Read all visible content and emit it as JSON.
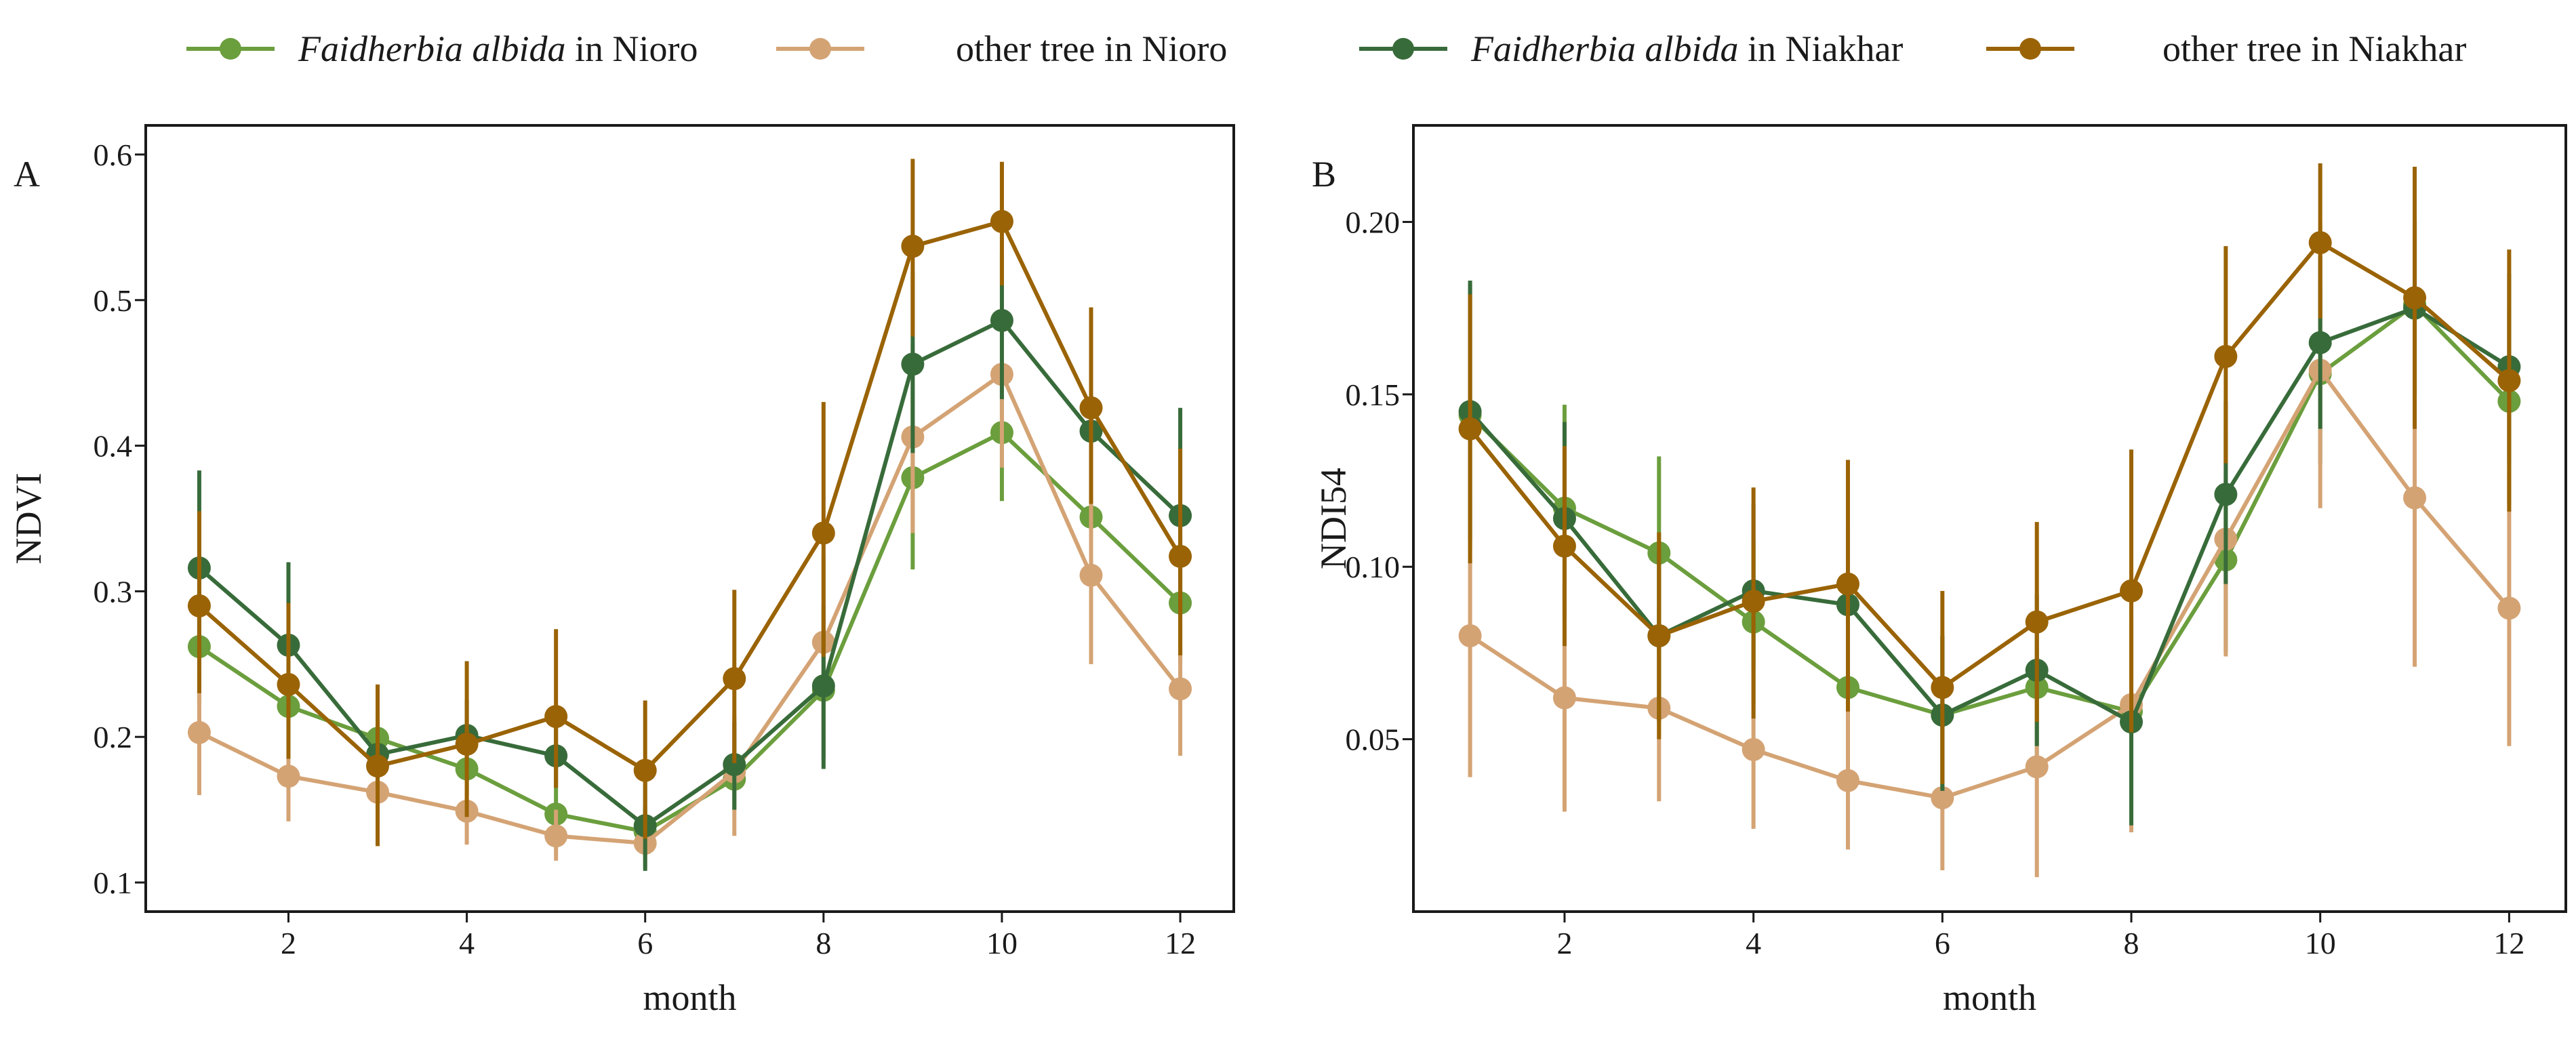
{
  "legend": [
    {
      "key": "fa_nioro",
      "prefix": "Faidherbia albida",
      "suffix": " in Nioro",
      "color": "#6b9e3d"
    },
    {
      "key": "ot_nioro",
      "prefix": "",
      "suffix": "other tree in Nioro",
      "color": "#d4a374"
    },
    {
      "key": "fa_niakhar",
      "prefix": "Faidherbia albida",
      "suffix": " in Niakhar",
      "color": "#386b3a"
    },
    {
      "key": "ot_niakhar",
      "prefix": "",
      "suffix": "other tree in Niakhar",
      "color": "#9a6305"
    }
  ],
  "chart_data": [
    {
      "type": "line",
      "panel_label": "A",
      "xlabel": "month",
      "ylabel": "NDVI",
      "xlim": [
        0.4,
        12.6
      ],
      "ylim": [
        0.08,
        0.62
      ],
      "x": [
        1,
        2,
        3,
        4,
        5,
        6,
        7,
        8,
        9,
        10,
        11,
        12
      ],
      "xticks": [
        2,
        4,
        6,
        8,
        10,
        12
      ],
      "yticks": [
        0.1,
        0.2,
        0.3,
        0.4,
        0.5,
        0.6
      ],
      "ytick_labels": [
        "0.1",
        "0.2",
        "0.3",
        "0.4",
        "0.5",
        "0.6"
      ],
      "series": [
        {
          "key": "fa_nioro",
          "name": "Faidherbia albida in Nioro",
          "color": "#6b9e3d",
          "values": [
            0.262,
            0.221,
            0.199,
            0.178,
            0.147,
            0.135,
            0.171,
            0.232,
            0.378,
            0.409,
            0.351,
            0.292
          ],
          "err_low": [
            0.222,
            0.198,
            0.182,
            0.16,
            0.13,
            0.118,
            0.15,
            0.185,
            0.315,
            0.362,
            0.305,
            0.25
          ],
          "err_high": [
            0.3,
            0.25,
            0.215,
            0.195,
            0.165,
            0.152,
            0.19,
            0.265,
            0.44,
            0.455,
            0.395,
            0.335
          ]
        },
        {
          "key": "ot_nioro",
          "name": "other tree in Nioro",
          "color": "#d4a374",
          "values": [
            0.203,
            0.173,
            0.162,
            0.149,
            0.132,
            0.127,
            0.176,
            0.265,
            0.406,
            0.449,
            0.311,
            0.233
          ],
          "err_low": [
            0.16,
            0.142,
            0.14,
            0.126,
            0.115,
            0.11,
            0.132,
            0.205,
            0.34,
            0.385,
            0.25,
            0.187
          ],
          "err_high": [
            0.245,
            0.205,
            0.185,
            0.17,
            0.15,
            0.145,
            0.215,
            0.325,
            0.47,
            0.51,
            0.37,
            0.28
          ]
        },
        {
          "key": "fa_niakhar",
          "name": "Faidherbia albida in Niakhar",
          "color": "#386b3a",
          "values": [
            0.316,
            0.263,
            0.188,
            0.201,
            0.187,
            0.139,
            0.181,
            0.235,
            0.456,
            0.486,
            0.41,
            0.352
          ],
          "err_low": [
            0.255,
            0.205,
            0.165,
            0.18,
            0.165,
            0.108,
            0.15,
            0.178,
            0.395,
            0.432,
            0.36,
            0.282
          ],
          "err_high": [
            0.383,
            0.32,
            0.21,
            0.225,
            0.21,
            0.172,
            0.21,
            0.29,
            0.52,
            0.532,
            0.46,
            0.426
          ]
        },
        {
          "key": "ot_niakhar",
          "name": "other tree in Niakhar",
          "color": "#9a6305",
          "values": [
            0.29,
            0.236,
            0.18,
            0.195,
            0.214,
            0.177,
            0.24,
            0.34,
            0.537,
            0.554,
            0.426,
            0.324
          ],
          "err_low": [
            0.23,
            0.185,
            0.125,
            0.145,
            0.165,
            0.13,
            0.182,
            0.255,
            0.475,
            0.51,
            0.36,
            0.256
          ],
          "err_high": [
            0.355,
            0.292,
            0.236,
            0.252,
            0.274,
            0.225,
            0.301,
            0.43,
            0.597,
            0.595,
            0.495,
            0.398
          ]
        }
      ]
    },
    {
      "type": "line",
      "panel_label": "B",
      "xlabel": "month",
      "ylabel": "NDI54",
      "xlim": [
        0.4,
        12.6
      ],
      "ylim": [
        0.0,
        0.228
      ],
      "x": [
        1,
        2,
        3,
        4,
        5,
        6,
        7,
        8,
        9,
        10,
        11,
        12
      ],
      "xticks": [
        2,
        4,
        6,
        8,
        10,
        12
      ],
      "yticks": [
        0.05,
        0.1,
        0.15,
        0.2
      ],
      "ytick_labels": [
        "0.05",
        "0.10",
        "0.15",
        "0.20"
      ],
      "series": [
        {
          "key": "fa_nioro",
          "name": "Faidherbia albida in Nioro",
          "color": "#6b9e3d",
          "values": [
            0.144,
            0.117,
            0.104,
            0.084,
            0.065,
            0.057,
            0.065,
            0.058,
            0.102,
            0.156,
            0.176,
            0.148
          ],
          "err_low": [
            0.105,
            0.09,
            0.075,
            0.06,
            0.042,
            0.035,
            0.045,
            0.03,
            0.075,
            0.13,
            0.15,
            0.118
          ],
          "err_high": [
            0.182,
            0.147,
            0.132,
            0.108,
            0.088,
            0.08,
            0.085,
            0.085,
            0.128,
            0.182,
            0.2,
            0.175
          ]
        },
        {
          "key": "ot_nioro",
          "name": "other tree in Nioro",
          "color": "#d4a374",
          "values": [
            0.08,
            0.062,
            0.059,
            0.047,
            0.038,
            0.033,
            0.042,
            0.06,
            0.108,
            0.157,
            0.12,
            0.088
          ],
          "err_low": [
            0.039,
            0.029,
            0.032,
            0.024,
            0.018,
            0.012,
            0.01,
            0.023,
            0.074,
            0.117,
            0.071,
            0.048
          ],
          "err_high": [
            0.12,
            0.095,
            0.087,
            0.07,
            0.06,
            0.055,
            0.075,
            0.098,
            0.14,
            0.2,
            0.17,
            0.128
          ]
        },
        {
          "key": "fa_niakhar",
          "name": "Faidherbia albida in Niakhar",
          "color": "#386b3a",
          "values": [
            0.145,
            0.114,
            0.08,
            0.093,
            0.089,
            0.057,
            0.07,
            0.055,
            0.121,
            0.165,
            0.175,
            0.158
          ],
          "err_low": [
            0.108,
            0.085,
            0.055,
            0.07,
            0.065,
            0.035,
            0.048,
            0.025,
            0.095,
            0.14,
            0.15,
            0.13
          ],
          "err_high": [
            0.183,
            0.142,
            0.105,
            0.118,
            0.112,
            0.08,
            0.092,
            0.085,
            0.148,
            0.19,
            0.2,
            0.185
          ]
        },
        {
          "key": "ot_niakhar",
          "name": "other tree in Niakhar",
          "color": "#9a6305",
          "values": [
            0.14,
            0.106,
            0.08,
            0.09,
            0.095,
            0.065,
            0.084,
            0.093,
            0.161,
            0.194,
            0.178,
            0.154
          ],
          "err_low": [
            0.101,
            0.077,
            0.05,
            0.056,
            0.058,
            0.037,
            0.055,
            0.052,
            0.13,
            0.172,
            0.14,
            0.116
          ],
          "err_high": [
            0.179,
            0.135,
            0.11,
            0.123,
            0.131,
            0.093,
            0.113,
            0.134,
            0.193,
            0.217,
            0.216,
            0.192
          ]
        }
      ]
    }
  ]
}
